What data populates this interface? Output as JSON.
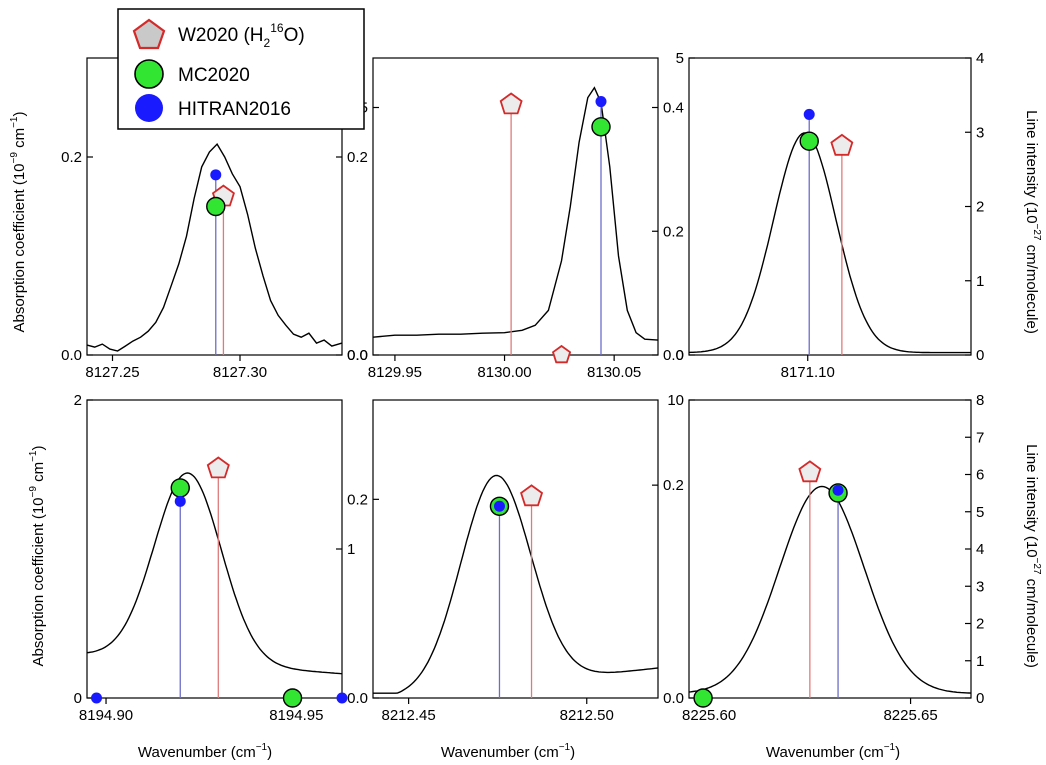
{
  "figure": {
    "xlabel": "Wavenumber",
    "xunit": "(cm",
    "xunit_sup": "−1",
    "xunit_close": ")",
    "ylabel_left": "Absorption coefficient (10",
    "ylabel_left_sup1": "−9",
    "ylabel_left_mid": " cm",
    "ylabel_left_sup2": "−1",
    "ylabel_left_close": ")",
    "ylabel_right": "Line intensity (10",
    "ylabel_right_sup": "−27",
    "ylabel_right_close": " cm/molecule)"
  },
  "legend": {
    "position": "top-left",
    "items": [
      {
        "label": "W2020 (H",
        "sub": "2",
        "sup": "16",
        "tail": "O)",
        "marker": "pentagon-icon",
        "color": "#d42a2a",
        "fill": "#c9c9c9"
      },
      {
        "label": "MC2020",
        "marker": "circle-icon",
        "color": "#000000",
        "fill": "#33e533"
      },
      {
        "label": "HITRAN2016",
        "marker": "circle-icon",
        "color": "#1a1aff",
        "fill": "#1a1aff"
      }
    ]
  },
  "colors": {
    "w2020": "#d42a2a",
    "mc2020": "#33e533",
    "hitran": "#1a1aff",
    "hitran_stick": "#6d6dc9",
    "w2020_stick": "#e07a7a",
    "spectrum": "#000000"
  },
  "chart_data": [
    {
      "type": "line",
      "panel": "top-left",
      "xlim": [
        8127.24,
        8127.34
      ],
      "xticks": [
        "8127.25",
        "8127.30"
      ],
      "xtick_values": [
        8127.25,
        8127.3
      ],
      "ylim_left": [
        0,
        0.3
      ],
      "yticks_left": [
        "0.0",
        "0.2"
      ],
      "ytick_values_left": [
        0,
        0.2
      ],
      "ylim_right": [
        0,
        0.3
      ],
      "yticks_right": [
        "0.0",
        "0.2"
      ],
      "ytick_values_right": [
        0,
        0.2
      ],
      "spectrum": {
        "x": [
          8127.24,
          8127.243,
          8127.246,
          8127.249,
          8127.252,
          8127.255,
          8127.258,
          8127.261,
          8127.264,
          8127.267,
          8127.27,
          8127.273,
          8127.276,
          8127.279,
          8127.282,
          8127.285,
          8127.288,
          8127.291,
          8127.294,
          8127.297,
          8127.3,
          8127.303,
          8127.306,
          8127.309,
          8127.312,
          8127.315,
          8127.318,
          8127.321,
          8127.324,
          8127.327,
          8127.33,
          8127.333,
          8127.336,
          8127.34
        ],
        "y": [
          0.01,
          0.008,
          0.011,
          0.006,
          0.004,
          0.009,
          0.014,
          0.018,
          0.024,
          0.033,
          0.048,
          0.07,
          0.092,
          0.12,
          0.158,
          0.19,
          0.205,
          0.213,
          0.2,
          0.183,
          0.17,
          0.142,
          0.108,
          0.08,
          0.055,
          0.04,
          0.03,
          0.021,
          0.018,
          0.022,
          0.012,
          0.015,
          0.009,
          0.012
        ]
      },
      "w2020": {
        "x": 8127.2935,
        "y": 0.16
      },
      "mc2020": {
        "x": 8127.2905,
        "y": 0.15
      },
      "hitran": {
        "x": 8127.2905,
        "y": 0.182
      }
    },
    {
      "type": "line",
      "panel": "top-middle",
      "xlim": [
        8129.94,
        8130.07
      ],
      "xticks": [
        "8129.95",
        "8130.00",
        "8130.05"
      ],
      "xtick_values": [
        8129.95,
        8130.0,
        8130.05
      ],
      "ylim_left": [
        0,
        0.6
      ],
      "yticks_left": [
        "0.0",
        "0.5"
      ],
      "ytick_values_left": [
        0,
        0.5
      ],
      "ylim_right": [
        0,
        0.48
      ],
      "yticks_right": [
        "0.0",
        "0.2",
        "0.4"
      ],
      "ytick_values_right": [
        0,
        0.2,
        0.4
      ],
      "spectrum": {
        "x": [
          8129.94,
          8129.95,
          8129.96,
          8129.97,
          8129.98,
          8129.99,
          8130.0,
          8130.008,
          8130.014,
          8130.02,
          8130.026,
          8130.03,
          8130.034,
          8130.038,
          8130.041,
          8130.044,
          8130.048,
          8130.052,
          8130.056,
          8130.06,
          8130.064,
          8130.07
        ],
        "y": [
          0.036,
          0.04,
          0.04,
          0.042,
          0.042,
          0.044,
          0.045,
          0.05,
          0.06,
          0.09,
          0.19,
          0.3,
          0.43,
          0.52,
          0.54,
          0.51,
          0.38,
          0.2,
          0.09,
          0.045,
          0.032,
          0.03
        ]
      },
      "w2020": {
        "x": 8130.003,
        "y": 0.506
      },
      "mc2020": {
        "x": 8130.044,
        "y": 0.461
      },
      "hitran": {
        "x": 8130.044,
        "y": 0.512
      },
      "extra": [
        {
          "series": "w2020",
          "x": 8130.026,
          "y": 0.0
        }
      ]
    },
    {
      "type": "line",
      "panel": "top-right",
      "xlim": [
        8171.06,
        8171.155
      ],
      "xticks": [
        "8171.10"
      ],
      "xtick_values": [
        8171.1
      ],
      "ylim_left": [
        0,
        5
      ],
      "yticks_left": [
        "0",
        "5"
      ],
      "ytick_values_left": [
        0,
        5
      ],
      "ylim_right": [
        0,
        4
      ],
      "yticks_right": [
        "0",
        "1",
        "2",
        "3",
        "4"
      ],
      "ytick_values_right": [
        0,
        1,
        2,
        3,
        4
      ],
      "spectrum": {
        "gauss": {
          "center": 8171.099,
          "sigma": 0.0105,
          "amp": 3.7,
          "base": 0.04
        }
      },
      "w2020": {
        "x": 8171.1115,
        "y": 3.52
      },
      "mc2020": {
        "x": 8171.1005,
        "y": 3.6
      },
      "hitran": {
        "x": 8171.1005,
        "y": 4.05
      }
    },
    {
      "type": "line",
      "panel": "bottom-left",
      "xlim": [
        8194.895,
        8194.962
      ],
      "xticks": [
        "8194.90",
        "8194.95"
      ],
      "xtick_values": [
        8194.9,
        8194.95
      ],
      "ylim_left": [
        0,
        2
      ],
      "yticks_left": [
        "0",
        "2"
      ],
      "ytick_values_left": [
        0,
        2
      ],
      "ylim_right": [
        0,
        2
      ],
      "yticks_right": [
        "1"
      ],
      "ytick_values_right": [
        1
      ],
      "spectrum": {
        "gauss": {
          "center": 8194.9215,
          "sigma": 0.0088,
          "amp": 1.27,
          "base": 0.24,
          "tilt": -1.9
        }
      },
      "w2020": {
        "x": 8194.9295,
        "y": 1.54
      },
      "mc2020": {
        "x": 8194.9195,
        "y": 1.41
      },
      "hitran": {
        "x": 8194.9195,
        "y": 1.32
      },
      "extra": [
        {
          "series": "hitran",
          "x": 8194.8975,
          "y": 0.0
        },
        {
          "series": "mc2020",
          "x": 8194.949,
          "y": 0.0
        },
        {
          "series": "hitran",
          "x": 8194.962,
          "y": 0.0
        }
      ]
    },
    {
      "type": "line",
      "panel": "bottom-middle",
      "xlim": [
        8212.44,
        8212.52
      ],
      "xticks": [
        "8212.45",
        "8212.50"
      ],
      "xtick_values": [
        8212.45,
        8212.5
      ],
      "ylim_left": [
        0,
        0.3
      ],
      "yticks_left": [
        "0.0",
        "0.2"
      ],
      "ytick_values_left": [
        0,
        0.2
      ],
      "ylim_right": [
        0,
        0.28
      ],
      "yticks_right": [
        "0.2"
      ],
      "ytick_values_right": [
        0.2
      ],
      "spectrum": {
        "gauss": {
          "center": 8212.4745,
          "sigma": 0.0098,
          "amp": 0.212,
          "base": 0.012,
          "tilt": 0.4
        }
      },
      "w2020": {
        "x": 8212.4845,
        "y": 0.203
      },
      "mc2020": {
        "x": 8212.4755,
        "y": 0.193
      },
      "hitran": {
        "x": 8212.4755,
        "y": 0.193
      }
    },
    {
      "type": "line",
      "panel": "bottom-right",
      "xlim": [
        8225.595,
        8225.665
      ],
      "xticks": [
        "8225.60",
        "8225.65"
      ],
      "xtick_values": [
        8225.6,
        8225.65
      ],
      "ylim_left": [
        0,
        10
      ],
      "yticks_left": [
        "0.0",
        "10"
      ],
      "ytick_values_left": [
        0,
        10
      ],
      "ylim_right": [
        0,
        8
      ],
      "yticks_right": [
        "0",
        "1",
        "2",
        "3",
        "4",
        "5",
        "6",
        "7",
        "8"
      ],
      "ytick_values_right": [
        0,
        1,
        2,
        3,
        4,
        5,
        6,
        7,
        8
      ],
      "spectrum": {
        "gauss": {
          "center": 8225.628,
          "sigma": 0.0105,
          "amp": 6.95,
          "base": 0.15
        }
      },
      "w2020": {
        "x": 8225.625,
        "y": 7.57
      },
      "mc2020": {
        "x": 8225.632,
        "y": 6.88
      },
      "hitran": {
        "x": 8225.632,
        "y": 6.97
      },
      "extra": [
        {
          "series": "mc2020",
          "x": 8225.5985,
          "y": 0.0
        }
      ]
    }
  ]
}
